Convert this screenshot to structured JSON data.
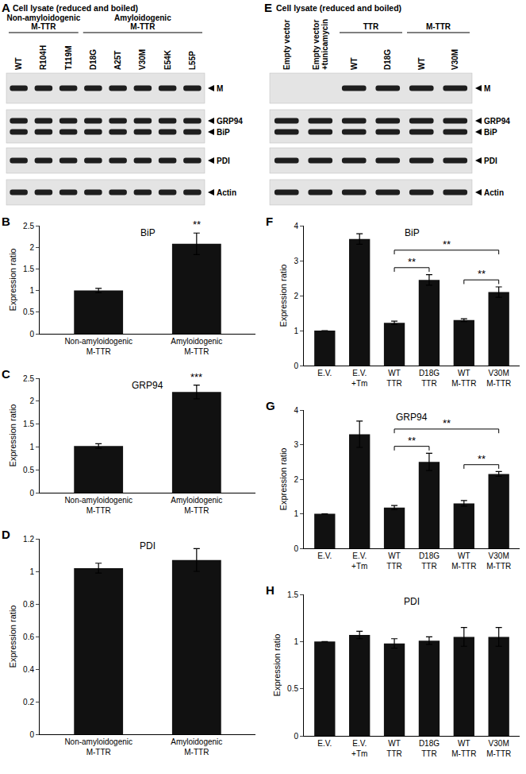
{
  "chart_data": [
    {
      "panel": "B",
      "type": "bar",
      "title": "BiP",
      "categories": [
        "Non-amyloidogenic M-TTR",
        "Amyloidogenic M-TTR"
      ],
      "values": [
        1.0,
        2.08
      ],
      "error": [
        0.05,
        0.25
      ],
      "color": "#111111",
      "ylabel": "Expression ratio",
      "ylim": [
        0,
        2.5
      ],
      "yticks": [
        0,
        0.5,
        1,
        1.5,
        2,
        2.5
      ],
      "significance": [
        {
          "categories": [
            "Amyloidogenic M-TTR"
          ],
          "label": "**"
        }
      ]
    },
    {
      "panel": "C",
      "type": "bar",
      "title": "GRP94",
      "categories": [
        "Non-amyloidogenic M-TTR",
        "Amyloidogenic M-TTR"
      ],
      "values": [
        1.02,
        2.2
      ],
      "error": [
        0.05,
        0.15
      ],
      "color": "#111111",
      "ylabel": "Expression ratio",
      "ylim": [
        0,
        2.5
      ],
      "yticks": [
        0,
        0.5,
        1,
        1.5,
        2,
        2.5
      ],
      "significance": [
        {
          "categories": [
            "Amyloidogenic M-TTR"
          ],
          "label": "***"
        }
      ]
    },
    {
      "panel": "D",
      "type": "bar",
      "title": "PDI",
      "categories": [
        "Non-amyloidogenic M-TTR",
        "Amyloidogenic M-TTR"
      ],
      "values": [
        1.02,
        1.07
      ],
      "error": [
        0.03,
        0.07
      ],
      "color": "#111111",
      "ylabel": "Expression ratio",
      "ylim": [
        0,
        1.2
      ],
      "yticks": [
        0,
        0.2,
        0.4,
        0.6,
        0.8,
        1,
        1.2
      ]
    },
    {
      "panel": "F",
      "type": "bar",
      "title": "BiP",
      "categories": [
        "E.V.",
        "E.V. +Tm",
        "WT TTR",
        "D18G TTR",
        "WT M-TTR",
        "V30M M-TTR"
      ],
      "values": [
        1.0,
        3.62,
        1.22,
        2.45,
        1.3,
        2.1
      ],
      "error": [
        0.0,
        0.15,
        0.05,
        0.15,
        0.04,
        0.15
      ],
      "color": "#111111",
      "ylabel": "Expression ratio",
      "ylim": [
        0,
        4
      ],
      "yticks": [
        0,
        1,
        2,
        3,
        4
      ],
      "significance": [
        {
          "categories": [
            "WT TTR",
            "D18G TTR"
          ],
          "label": "**"
        },
        {
          "categories": [
            "WT M-TTR",
            "V30M M-TTR"
          ],
          "label": "**"
        },
        {
          "categories": [
            "WT TTR",
            "V30M M-TTR"
          ],
          "label": "**"
        }
      ]
    },
    {
      "panel": "G",
      "type": "bar",
      "title": "GRP94",
      "categories": [
        "E.V.",
        "E.V. +Tm",
        "WT TTR",
        "D18G TTR",
        "WT M-TTR",
        "V30M M-TTR"
      ],
      "values": [
        1.0,
        3.3,
        1.18,
        2.5,
        1.3,
        2.15
      ],
      "error": [
        0.0,
        0.38,
        0.06,
        0.25,
        0.08,
        0.07
      ],
      "color": "#111111",
      "ylabel": "Expression ratio",
      "ylim": [
        0,
        4
      ],
      "yticks": [
        0,
        1,
        2,
        3,
        4
      ],
      "significance": [
        {
          "categories": [
            "WT TTR",
            "D18G TTR"
          ],
          "label": "**"
        },
        {
          "categories": [
            "WT M-TTR",
            "V30M M-TTR"
          ],
          "label": "**"
        },
        {
          "categories": [
            "WT TTR",
            "V30M M-TTR"
          ],
          "label": "**"
        }
      ]
    },
    {
      "panel": "H",
      "type": "bar",
      "title": "PDI",
      "categories": [
        "E.V.",
        "E.V. +Tm",
        "WT TTR",
        "D18G TTR",
        "WT M-TTR",
        "V30M M-TTR"
      ],
      "values": [
        1.0,
        1.07,
        0.98,
        1.01,
        1.05,
        1.05
      ],
      "error": [
        0.0,
        0.04,
        0.05,
        0.04,
        0.1,
        0.1
      ],
      "color": "#111111",
      "ylabel": "Expression ratio",
      "ylim": [
        0,
        1.5
      ],
      "yticks": [
        0,
        0.5,
        1,
        1.5
      ]
    }
  ],
  "blots": [
    {
      "panel": "A",
      "title": "Cell lysate (reduced and boiled)",
      "groups": [
        {
          "label": "Non-amyloidogenic M-TTR",
          "lanes": [
            "WT",
            "R104H",
            "T119M"
          ]
        },
        {
          "label": "Amyloidogenic M-TTR",
          "lanes": [
            "D18G",
            "A25T",
            "V30M",
            "E54K",
            "L55P"
          ]
        }
      ],
      "rows": [
        {
          "labels": [
            "M"
          ]
        },
        {
          "labels": [
            "GRP94",
            "BiP"
          ]
        },
        {
          "labels": [
            "PDI"
          ]
        },
        {
          "labels": [
            "Actin"
          ]
        }
      ]
    },
    {
      "panel": "E",
      "title": "Cell lysate (reduced and boiled)",
      "groups": [
        {
          "lanes": [
            "Empty vector"
          ]
        },
        {
          "lanes": [
            "Empty vector +tunicamycin"
          ]
        },
        {
          "label": "TTR",
          "lanes": [
            "WT",
            "D18G"
          ]
        },
        {
          "label": "M-TTR",
          "lanes": [
            "WT",
            "V30M"
          ]
        }
      ],
      "rows": [
        {
          "labels": [
            "M"
          ],
          "present": [
            false,
            false,
            true,
            true,
            true,
            true
          ]
        },
        {
          "labels": [
            "GRP94",
            "BiP"
          ]
        },
        {
          "labels": [
            "PDI"
          ]
        },
        {
          "labels": [
            "Actin"
          ]
        }
      ]
    }
  ]
}
